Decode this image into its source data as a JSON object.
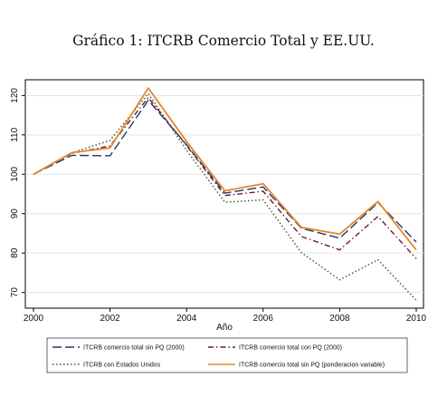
{
  "page_title": "Gráfico 1: ITCRB Comercio Total y EE.UU.",
  "chart_data": {
    "type": "line",
    "title": "",
    "xlabel": "Año",
    "ylabel": "",
    "x": [
      2000,
      2001,
      2002,
      2003,
      2004,
      2005,
      2006,
      2007,
      2008,
      2009,
      2010
    ],
    "xlim": [
      2000,
      2010
    ],
    "ylim": [
      66,
      124
    ],
    "xticks": [
      "2000",
      "2002",
      "2004",
      "2006",
      "2008",
      "2010"
    ],
    "yticks": [
      "70",
      "80",
      "90",
      "100",
      "110",
      "120"
    ],
    "grid": true,
    "legend_position": "bottom",
    "series": [
      {
        "name": "ITCRB comercio total sin PQ (2000)",
        "color": "#1f3a64",
        "dash": "long-dash",
        "values": [
          100,
          104.8,
          104.7,
          118.8,
          107.5,
          95.2,
          96.8,
          86.3,
          83.8,
          92.8,
          82.8
        ]
      },
      {
        "name": "ITCRB comercio total con PQ (2000)",
        "color": "#6b1b2e",
        "dash": "dash-dot",
        "values": [
          100,
          105.3,
          107.2,
          119.5,
          107.3,
          94.6,
          95.7,
          84.2,
          80.8,
          89.3,
          78.6
        ]
      },
      {
        "name": "ITCRB con Estados Unidos",
        "color": "#3a5a1e",
        "dash": "dot",
        "values": [
          100,
          105.4,
          108.6,
          120.5,
          106.1,
          92.9,
          93.5,
          80.1,
          73.2,
          78.3,
          68.0
        ]
      },
      {
        "name": "ITCRB comercio total sin PQ (ponderacion variable)",
        "color": "#e8862a",
        "dash": "solid",
        "values": [
          100,
          105.5,
          106.7,
          121.9,
          108.3,
          95.8,
          97.6,
          86.5,
          84.8,
          93.1,
          80.8
        ]
      }
    ]
  }
}
